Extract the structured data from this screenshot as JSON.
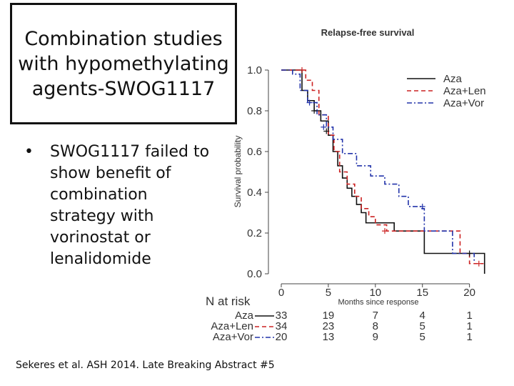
{
  "slide": {
    "title": "Combination studies with hypomethylating agents-SWOG1117",
    "bullets": [
      "SWOG1117 failed to show benefit of combination strategy with vorinostat or lenalidomide"
    ],
    "citation": "Sekeres et al. ASH 2014. Late Breaking Abstract #5"
  },
  "chart_data": {
    "type": "line",
    "title": "Relapse-free survival",
    "xlabel": "Months since response",
    "ylabel": "Survival probability",
    "xlim": [
      0,
      22
    ],
    "ylim": [
      0,
      1
    ],
    "xticks": [
      "0",
      "5",
      "10",
      "15",
      "20"
    ],
    "yticks": [
      "0.0",
      "0.2",
      "0.4",
      "0.6",
      "0.8",
      "1.0"
    ],
    "legend_position": "top-right",
    "series": [
      {
        "name": "Aza",
        "color": "#111111",
        "dash": "solid",
        "x": [
          0,
          1.5,
          2.2,
          2.8,
          3.5,
          4.2,
          5.0,
          5.5,
          6.0,
          6.5,
          7.0,
          7.5,
          8.0,
          8.5,
          9.0,
          10.0,
          12.0,
          15.2,
          21.0,
          21.6
        ],
        "y": [
          1.0,
          1.0,
          0.9,
          0.85,
          0.8,
          0.75,
          0.68,
          0.6,
          0.53,
          0.47,
          0.42,
          0.38,
          0.34,
          0.3,
          0.25,
          0.25,
          0.21,
          0.1,
          0.1,
          0.0
        ]
      },
      {
        "name": "Aza+Len",
        "color": "#cc2222",
        "dash": "dashed",
        "x": [
          0,
          2.0,
          2.6,
          3.3,
          4.0,
          5.0,
          5.6,
          6.2,
          7.0,
          7.8,
          8.5,
          9.3,
          10.0,
          11.2,
          15.2,
          19.0,
          20.0,
          21.5
        ],
        "y": [
          1.0,
          1.0,
          0.95,
          0.9,
          0.78,
          0.68,
          0.6,
          0.5,
          0.44,
          0.38,
          0.32,
          0.28,
          0.24,
          0.21,
          0.21,
          0.1,
          0.05,
          0.05
        ]
      },
      {
        "name": "Aza+Vor",
        "color": "#2233aa",
        "dash": "dashdot",
        "x": [
          0,
          1.2,
          2.0,
          2.8,
          3.8,
          4.8,
          5.5,
          6.5,
          8.0,
          9.5,
          11.0,
          12.5,
          13.5,
          14.8,
          15.2,
          17.0,
          18.2,
          20.5
        ],
        "y": [
          1.0,
          0.98,
          0.9,
          0.84,
          0.78,
          0.72,
          0.66,
          0.59,
          0.53,
          0.48,
          0.44,
          0.38,
          0.33,
          0.32,
          0.21,
          0.21,
          0.1,
          0.06
        ]
      }
    ],
    "censor_marks": [
      {
        "series": "Aza",
        "x": [
          3.5,
          4.8,
          20.0
        ],
        "y": [
          0.8,
          0.7,
          0.1
        ]
      },
      {
        "series": "Aza+Len",
        "x": [
          2.2,
          11.0,
          21.0
        ],
        "y": [
          1.0,
          0.21,
          0.05
        ]
      },
      {
        "series": "Aza+Vor",
        "x": [
          3.0,
          4.5,
          15.0
        ],
        "y": [
          0.84,
          0.72,
          0.33
        ]
      }
    ],
    "risk_table": {
      "label": "N at risk",
      "times": [
        0,
        5,
        10,
        15,
        20
      ],
      "rows": [
        {
          "name": "Aza",
          "counts": [
            "33",
            "19",
            "7",
            "4",
            "1"
          ]
        },
        {
          "name": "Aza+Len",
          "counts": [
            "34",
            "23",
            "8",
            "5",
            "1"
          ]
        },
        {
          "name": "Aza+Vor",
          "counts": [
            "20",
            "13",
            "9",
            "5",
            "1"
          ]
        }
      ]
    }
  }
}
